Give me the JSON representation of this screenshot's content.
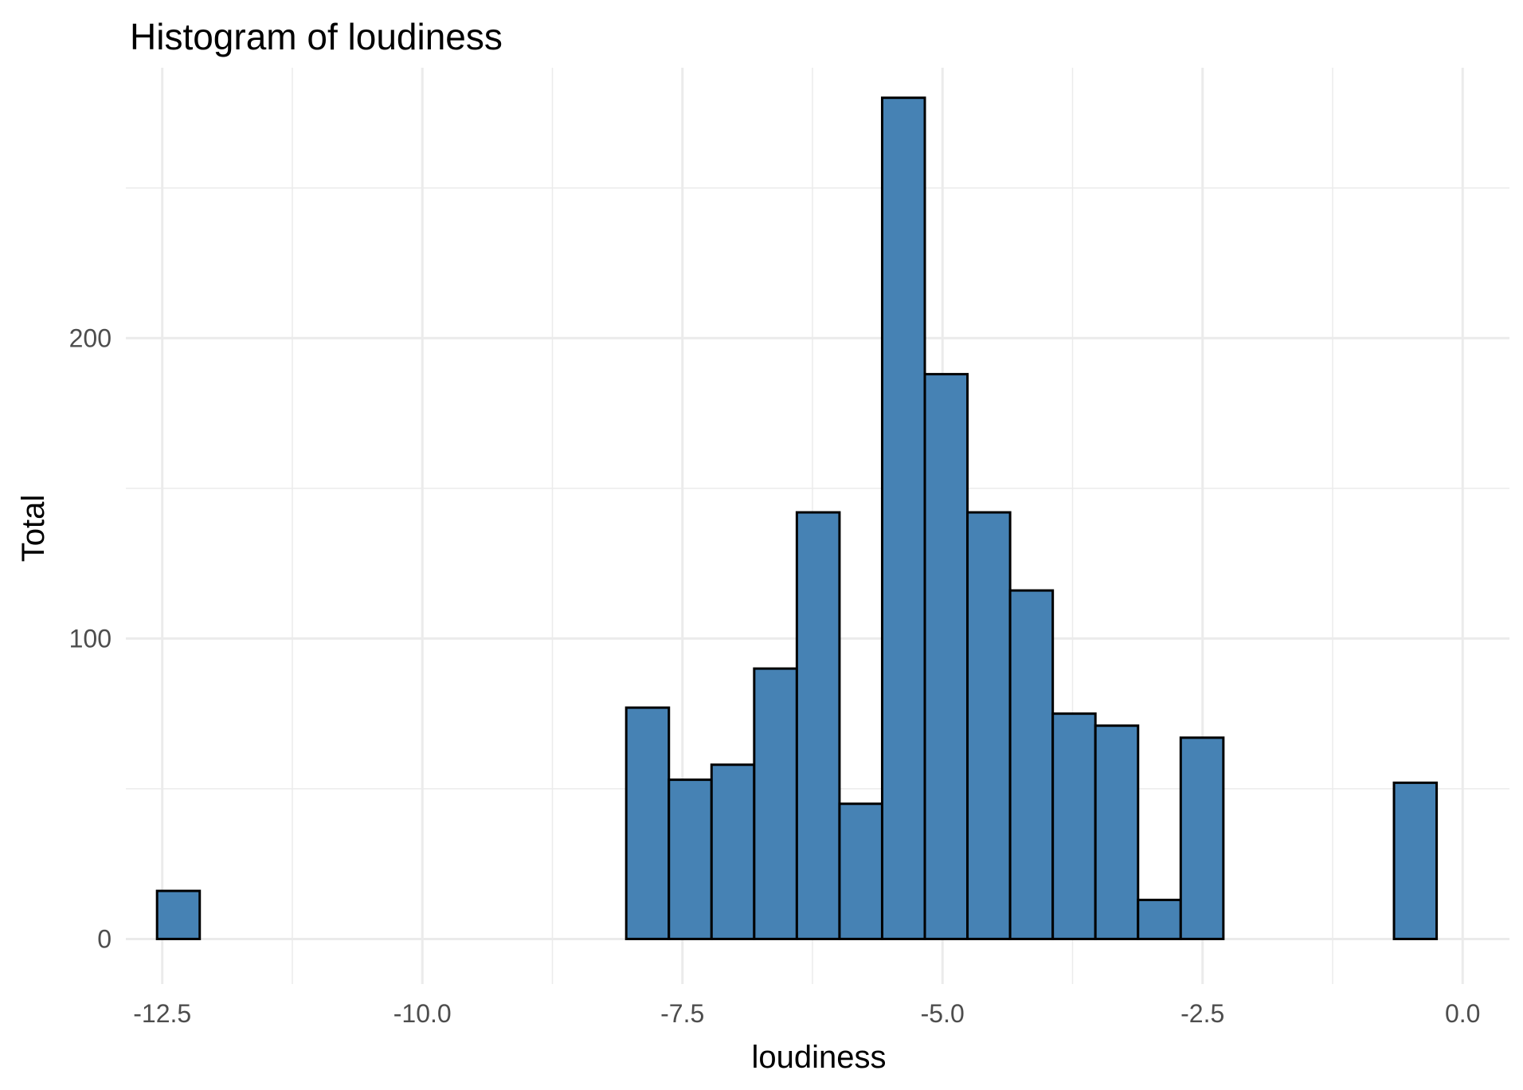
{
  "chart_data": {
    "type": "bar",
    "title": "Histogram of  loudiness",
    "xlabel": "loudiness",
    "ylabel": "Total",
    "xlim": [
      -12.85,
      0.45
    ],
    "ylim": [
      -15,
      290
    ],
    "x_ticks": [
      -12.5,
      -10.0,
      -7.5,
      -5.0,
      -2.5,
      0.0
    ],
    "x_tick_labels": [
      "-12.5",
      "-10.0",
      "-7.5",
      "-5.0",
      "-2.5",
      "0.0"
    ],
    "y_ticks": [
      0,
      100,
      200
    ],
    "y_tick_labels": [
      "0",
      "100",
      "200"
    ],
    "bin_width": 0.41,
    "bin_start": -12.55,
    "values": [
      16,
      0,
      0,
      0,
      0,
      0,
      0,
      0,
      0,
      0,
      0,
      77,
      53,
      58,
      90,
      142,
      45,
      280,
      188,
      142,
      116,
      75,
      71,
      13,
      67,
      0,
      0,
      0,
      0,
      52
    ],
    "grid": true,
    "legend": "none",
    "colors": {
      "fill": "#4682b4",
      "outline": "#000000",
      "grid": "#ebebeb"
    }
  }
}
